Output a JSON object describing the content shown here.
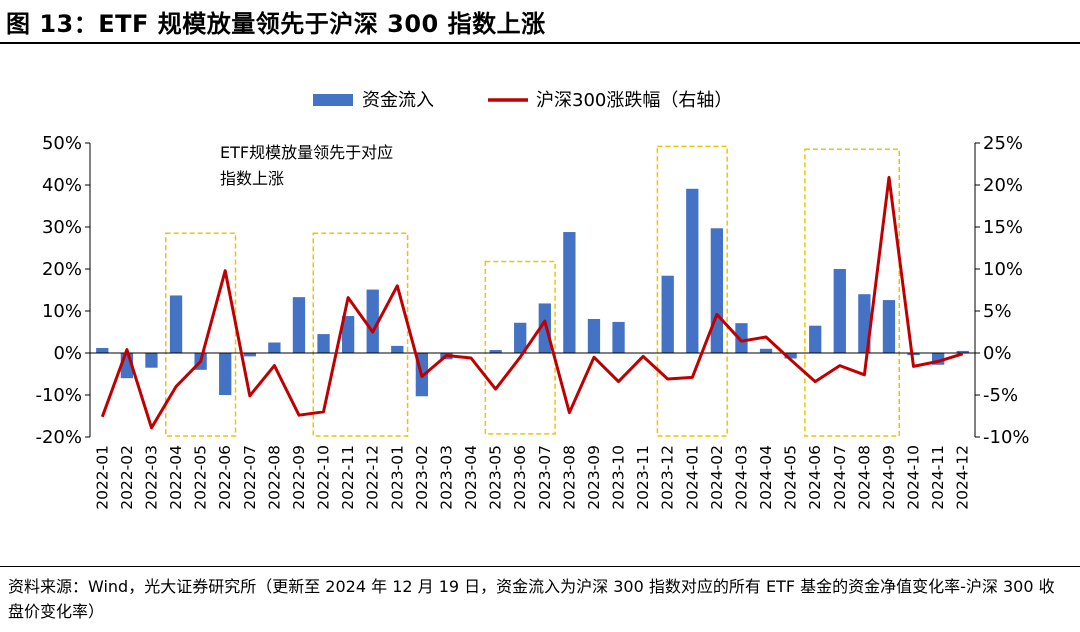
{
  "figure": {
    "title": "图 13：ETF 规模放量领先于沪深 300 指数上涨",
    "source_note": "资料来源：Wind，光大证券研究所（更新至 2024 年 12 月 19 日，资金流入为沪深 300 指数对应的所有 ETF 基金的资金净值变化率-沪深 300 收盘价变化率）"
  },
  "colors": {
    "bar": "#4472C4",
    "line": "#C00000",
    "highlight_box": "#F2C200",
    "axis": "#000000"
  },
  "chart_data": {
    "type": "bar",
    "categories": [
      "2022-01",
      "2022-02",
      "2022-03",
      "2022-04",
      "2022-05",
      "2022-06",
      "2022-07",
      "2022-08",
      "2022-09",
      "2022-10",
      "2022-11",
      "2022-12",
      "2023-01",
      "2023-02",
      "2023-03",
      "2023-04",
      "2023-05",
      "2023-06",
      "2023-07",
      "2023-08",
      "2023-09",
      "2023-10",
      "2023-11",
      "2023-12",
      "2024-01",
      "2024-02",
      "2024-03",
      "2024-04",
      "2024-05",
      "2024-06",
      "2024-07",
      "2024-08",
      "2024-09",
      "2024-10",
      "2024-11",
      "2024-12"
    ],
    "series": [
      {
        "name": "资金流入",
        "type": "bar",
        "axis": "left",
        "values": [
          1.2,
          -6.0,
          -3.5,
          13.7,
          -4.0,
          -10.0,
          -0.8,
          2.5,
          13.3,
          4.5,
          8.8,
          15.1,
          1.7,
          -10.3,
          -1.5,
          0.0,
          0.7,
          7.2,
          11.8,
          28.8,
          8.1,
          7.4,
          0.0,
          18.4,
          39.1,
          29.7,
          7.1,
          1.0,
          -1.3,
          6.5,
          20.0,
          14.0,
          12.6,
          -0.5,
          -2.8,
          0.5
        ]
      },
      {
        "name": "沪深300涨跌幅（右轴）",
        "type": "line",
        "axis": "right",
        "values": [
          -7.6,
          0.4,
          -8.9,
          -4.0,
          -1.0,
          9.8,
          -5.1,
          -1.5,
          -7.4,
          -7.0,
          6.6,
          2.5,
          8.0,
          -2.8,
          -0.3,
          -0.6,
          -4.3,
          -0.5,
          3.8,
          -7.1,
          -0.5,
          -3.4,
          -0.4,
          -3.1,
          -2.9,
          4.6,
          1.4,
          1.9,
          -0.8,
          -3.4,
          -1.5,
          -2.6,
          20.9,
          -1.6,
          -1.0,
          -0.1
        ]
      }
    ],
    "y_left": {
      "min": -20,
      "max": 50,
      "ticks": [
        "-20%",
        "-10%",
        "0%",
        "10%",
        "20%",
        "30%",
        "40%",
        "50%"
      ]
    },
    "y_right": {
      "min": -10,
      "max": 25,
      "ticks": [
        "-10%",
        "-5%",
        "0%",
        "5%",
        "10%",
        "15%",
        "20%",
        "25%"
      ]
    },
    "xlabel": "",
    "ylabel": "",
    "legend": {
      "placement": "top-center"
    },
    "grid": false,
    "annotation": {
      "lines": [
        "ETF规模放量领先于对应",
        "指数上涨"
      ]
    },
    "highlight_ranges": [
      {
        "from": "2022-04",
        "to": "2022-06",
        "y_top": 28.5,
        "y_bottom": -20
      },
      {
        "from": "2022-10",
        "to": "2023-01",
        "y_top": 28.5,
        "y_bottom": -20
      },
      {
        "from": "2023-05",
        "to": "2023-07",
        "y_top": 21.8,
        "y_bottom": -19.5
      },
      {
        "from": "2023-12",
        "to": "2024-02",
        "y_top": 49.2,
        "y_bottom": -20
      },
      {
        "from": "2024-06",
        "to": "2024-09",
        "y_top": 48.5,
        "y_bottom": -20
      }
    ]
  }
}
